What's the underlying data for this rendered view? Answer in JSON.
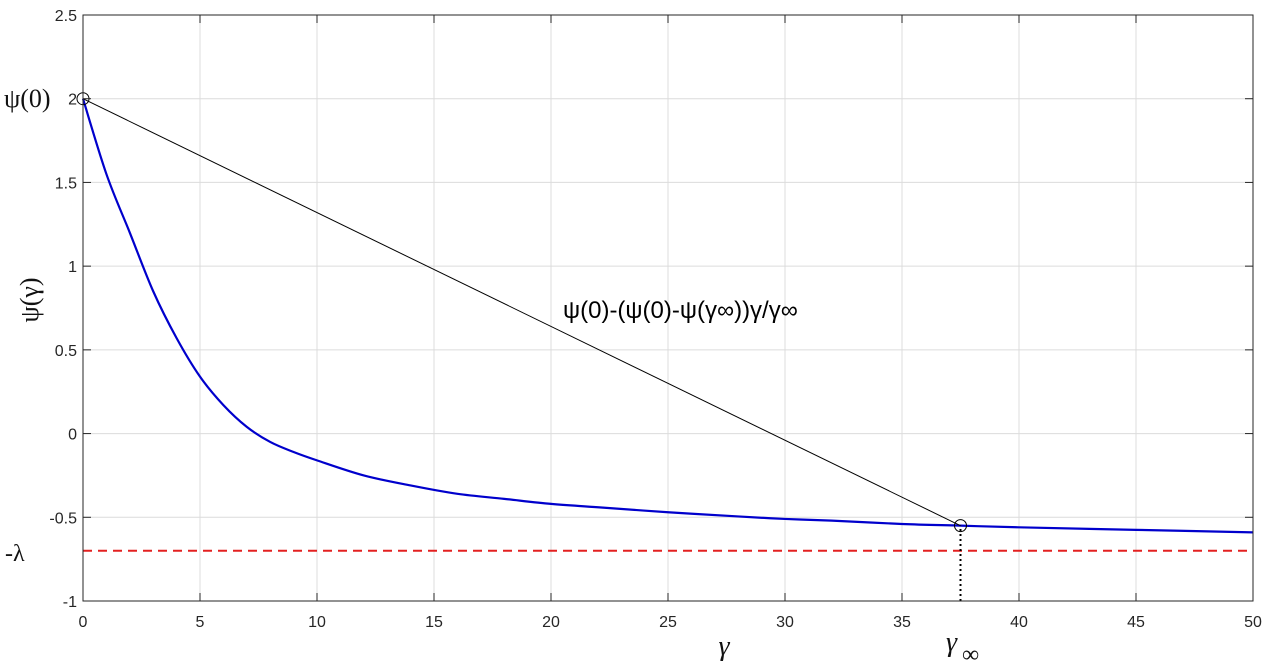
{
  "chart_data": {
    "type": "line",
    "xlim": [
      0,
      50
    ],
    "ylim": [
      -1,
      2.5
    ],
    "xticks": [
      0,
      5,
      10,
      15,
      20,
      25,
      30,
      35,
      40,
      45,
      50
    ],
    "yticks": [
      -1,
      -0.5,
      0,
      0.5,
      1,
      1.5,
      2,
      2.5
    ],
    "xtick_labels": [
      "0",
      "5",
      "10",
      "15",
      "20",
      "25",
      "30",
      "35",
      "40",
      "45",
      "50"
    ],
    "ytick_labels": [
      "-1",
      "-0.5",
      "0",
      "0.5",
      "1",
      "1.5",
      "2",
      "2.5"
    ],
    "grid": true,
    "xlabel": "γ",
    "ylabel": "ψ(γ)",
    "ytick_extra": {
      "psi0_label": "ψ(0)",
      "lambda_label": "-λ"
    },
    "xtick_extra": {
      "gamma_inf_label": "γ"
    },
    "annotation": "ψ(0)-(ψ(0)-ψ(γ∞))γ/γ∞",
    "series": [
      {
        "color": "#0000cc",
        "style": "solid",
        "points": [
          [
            0,
            2.0
          ],
          [
            1,
            1.55
          ],
          [
            2,
            1.2
          ],
          [
            3,
            0.85
          ],
          [
            4,
            0.57
          ],
          [
            5,
            0.34
          ],
          [
            6,
            0.17
          ],
          [
            7,
            0.04
          ],
          [
            8,
            -0.05
          ],
          [
            9,
            -0.11
          ],
          [
            10,
            -0.16
          ],
          [
            12,
            -0.25
          ],
          [
            14,
            -0.31
          ],
          [
            16,
            -0.36
          ],
          [
            18,
            -0.39
          ],
          [
            20,
            -0.42
          ],
          [
            22,
            -0.44
          ],
          [
            25,
            -0.47
          ],
          [
            28,
            -0.495
          ],
          [
            30,
            -0.51
          ],
          [
            32,
            -0.52
          ],
          [
            35,
            -0.54
          ],
          [
            37.5,
            -0.55
          ],
          [
            40,
            -0.56
          ],
          [
            45,
            -0.575
          ],
          [
            50,
            -0.59
          ]
        ]
      },
      {
        "color": "#000000",
        "style": "solid",
        "points": [
          [
            0,
            2.0
          ],
          [
            37.5,
            -0.55
          ]
        ]
      },
      {
        "color": "#e32020",
        "style": "dashed",
        "points": [
          [
            0,
            -0.7
          ],
          [
            50,
            -0.7
          ]
        ]
      }
    ],
    "markers": [
      {
        "shape": "circle",
        "x": 0,
        "y": 2.0
      },
      {
        "shape": "circle",
        "x": 37.5,
        "y": -0.55
      }
    ],
    "vline": {
      "x": 37.5,
      "y_from": -1,
      "y_to": -0.55,
      "style": "dotted",
      "color": "#000000"
    },
    "colors": {
      "axes": "#262626",
      "grid": "#dcdcdc"
    }
  }
}
